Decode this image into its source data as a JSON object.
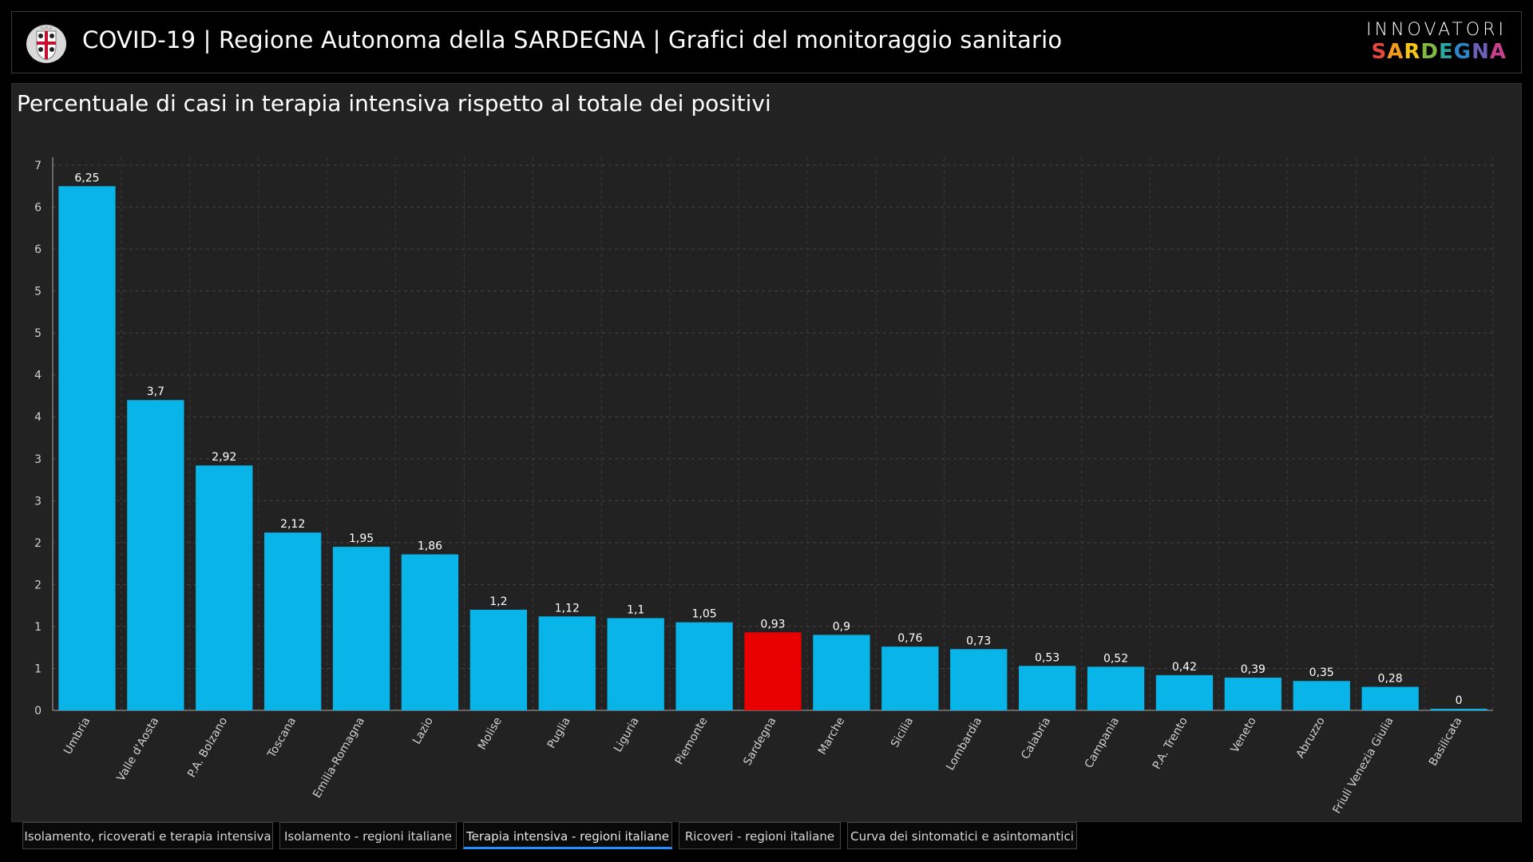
{
  "header": {
    "title": "COVID-19 | Regione Autonoma della SARDEGNA | Grafici del monitoraggio sanitario",
    "logo_top": "INNOVATORI",
    "logo_bottom_letters": [
      {
        "ch": "S",
        "color": "#e8473f"
      },
      {
        "ch": "A",
        "color": "#f29b1d"
      },
      {
        "ch": "R",
        "color": "#f5c518"
      },
      {
        "ch": "D",
        "color": "#7fb843"
      },
      {
        "ch": "E",
        "color": "#2aa7a0"
      },
      {
        "ch": "G",
        "color": "#2e86c9"
      },
      {
        "ch": "N",
        "color": "#6c5fb8"
      },
      {
        "ch": "A",
        "color": "#c9408f"
      }
    ]
  },
  "chart_data": {
    "type": "bar",
    "title": "Percentuale di casi in terapia intensiva rispetto al totale dei positivi",
    "categories": [
      "Umbria",
      "Valle d'Aosta",
      "P.A. Bolzano",
      "Toscana",
      "Emilia-Romagna",
      "Lazio",
      "Molise",
      "Puglia",
      "Liguria",
      "Piemonte",
      "Sardegna",
      "Marche",
      "Sicilia",
      "Lombardia",
      "Calabria",
      "Campania",
      "P.A. Trento",
      "Veneto",
      "Abruzzo",
      "Friuli Venezia Giulia",
      "Basilicata"
    ],
    "values": [
      6.25,
      3.7,
      2.92,
      2.12,
      1.95,
      1.86,
      1.2,
      1.12,
      1.1,
      1.05,
      0.93,
      0.9,
      0.76,
      0.73,
      0.53,
      0.52,
      0.42,
      0.39,
      0.35,
      0.28,
      0
    ],
    "value_labels": [
      "6,25",
      "3,7",
      "2,92",
      "2,12",
      "1,95",
      "1,86",
      "1,2",
      "1,12",
      "1,1",
      "1,05",
      "0,93",
      "0,9",
      "0,76",
      "0,73",
      "0,53",
      "0,52",
      "0,42",
      "0,39",
      "0,35",
      "0,28",
      "0"
    ],
    "tick_labels": [
      "0",
      "1",
      "1",
      "2",
      "2",
      "3",
      "3",
      "4",
      "4",
      "5",
      "5",
      "6",
      "6",
      "7"
    ],
    "ylim": [
      0,
      6.5
    ],
    "tick_step": 0.5,
    "grid": true,
    "bar_color": "#08b4e8",
    "highlight_category": "Sardegna",
    "highlight_color": "#e80000",
    "xlabel": "",
    "ylabel": ""
  },
  "tabs": [
    {
      "label": "Isolamento, ricoverati e terapia intensiva",
      "active": false
    },
    {
      "label": "Isolamento - regioni italiane",
      "active": false
    },
    {
      "label": "Terapia intensiva - regioni italiane",
      "active": true
    },
    {
      "label": "Ricoveri - regioni italiane",
      "active": false
    },
    {
      "label": "Curva dei sintomatici e asintomantici",
      "active": false
    }
  ]
}
